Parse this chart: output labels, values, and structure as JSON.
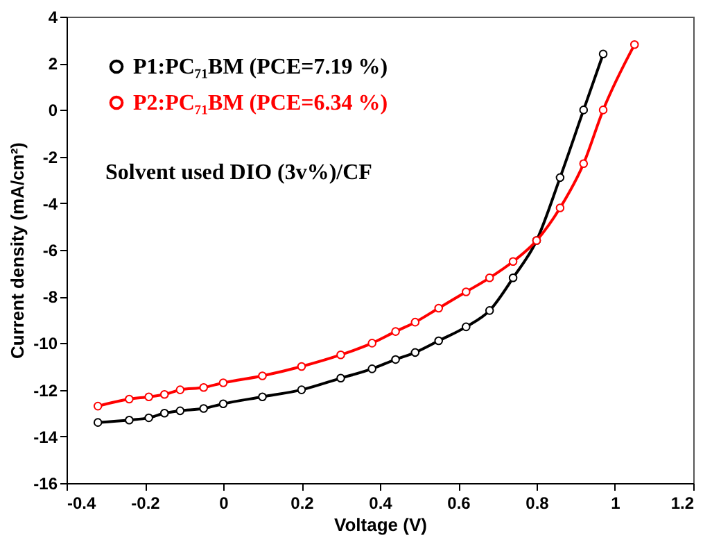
{
  "chart_data": {
    "type": "line",
    "xlabel": "Voltage (V)",
    "ylabel": "Current density (mA/cm²)",
    "xlim": [
      -0.4,
      1.2
    ],
    "xticks": [
      -0.4,
      -0.2,
      0,
      0.2,
      0.4,
      0.6,
      0.8,
      1,
      1.2
    ],
    "ylim": [
      -16,
      4
    ],
    "yticks": [
      -16,
      -14,
      -12,
      -10,
      -8,
      -6,
      -4,
      -2,
      0,
      2,
      4
    ],
    "grid": false,
    "legend": "top left",
    "marker": "circle",
    "line_style": "solid",
    "annotations": [
      "Solvent used DIO (3v%)/CF"
    ],
    "series": [
      {
        "name": "P1:PC₇₁BM (PCE=7.19 %)",
        "color": "#000000",
        "x": [
          -0.32,
          -0.24,
          -0.19,
          -0.15,
          -0.11,
          -0.05,
          0.0,
          0.1,
          0.2,
          0.3,
          0.38,
          0.44,
          0.49,
          0.55,
          0.62,
          0.68,
          0.74,
          0.8,
          0.86,
          0.92,
          0.97
        ],
        "values": [
          -13.4,
          -13.3,
          -13.2,
          -13.0,
          -12.9,
          -12.8,
          -12.6,
          -12.3,
          -12.0,
          -11.5,
          -11.1,
          -10.7,
          -10.4,
          -9.9,
          -9.3,
          -8.6,
          -7.2,
          -5.6,
          -2.9,
          0.0,
          2.4
        ]
      },
      {
        "name": "P2:PC₇₁BM (PCE=6.34 %)",
        "color": "#ff0000",
        "x": [
          -0.32,
          -0.24,
          -0.19,
          -0.15,
          -0.11,
          -0.05,
          0.0,
          0.1,
          0.2,
          0.3,
          0.38,
          0.44,
          0.49,
          0.55,
          0.62,
          0.68,
          0.74,
          0.8,
          0.86,
          0.92,
          0.97,
          1.05
        ],
        "values": [
          -12.7,
          -12.4,
          -12.3,
          -12.2,
          -12.0,
          -11.9,
          -11.7,
          -11.4,
          -11.0,
          -10.5,
          -10.0,
          -9.5,
          -9.1,
          -8.5,
          -7.8,
          -7.2,
          -6.5,
          -5.6,
          -4.2,
          -2.3,
          0.0,
          2.8
        ]
      }
    ]
  }
}
